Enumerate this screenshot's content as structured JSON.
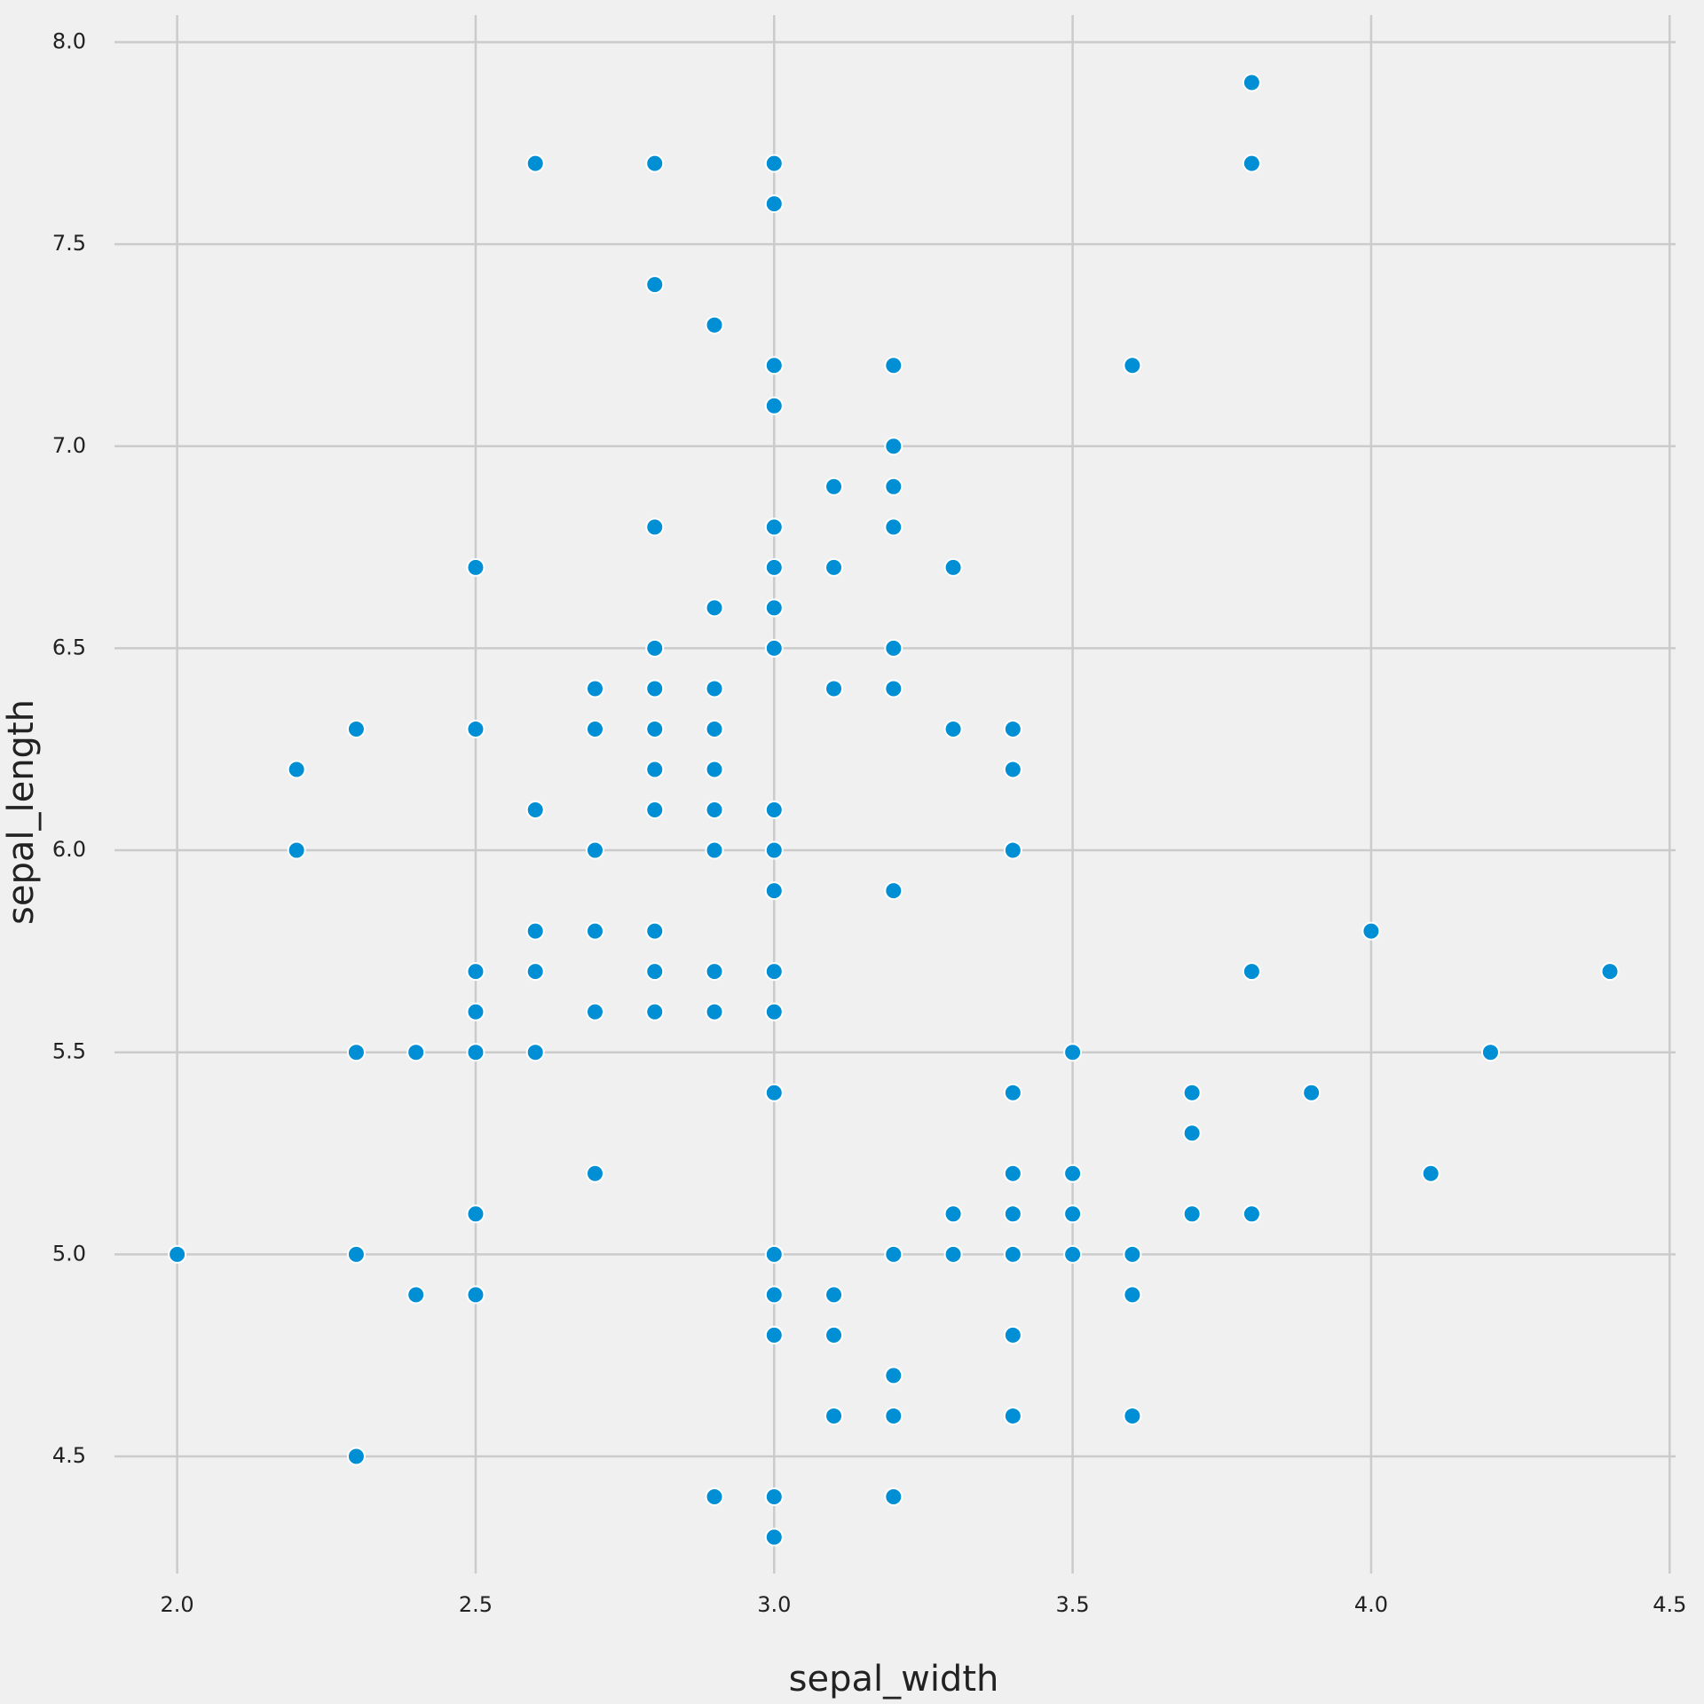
{
  "chart_data": {
    "type": "scatter",
    "x_label": "sepal_width",
    "y_label": "sepal_length",
    "color": "#008fd5",
    "grid": true,
    "xlim": [
      1.895,
      4.51
    ],
    "ylim": [
      4.21,
      8.067
    ],
    "xticks": [
      {
        "value": 2,
        "label": "2.0"
      },
      {
        "value": 2.5,
        "label": "2.5"
      },
      {
        "value": 3,
        "label": "3.0"
      },
      {
        "value": 3.5,
        "label": "3.5"
      },
      {
        "value": 4,
        "label": "4.0"
      },
      {
        "value": 4.5,
        "label": "4.5"
      }
    ],
    "yticks": [
      {
        "value": 4.5,
        "label": "4.5"
      },
      {
        "value": 5,
        "label": "5.0"
      },
      {
        "value": 5.5,
        "label": "5.5"
      },
      {
        "value": 6,
        "label": "6.0"
      },
      {
        "value": 6.5,
        "label": "6.5"
      },
      {
        "value": 7,
        "label": "7.0"
      },
      {
        "value": 7.5,
        "label": "7.5"
      },
      {
        "value": 8,
        "label": "8.0"
      }
    ],
    "x": [
      3.8,
      2.6,
      2.8,
      3.0,
      3.8,
      3.0,
      2.8,
      2.9,
      3.0,
      3.2,
      3.6,
      3.0,
      3.2,
      3.1,
      3.2,
      2.8,
      3.0,
      3.2,
      2.5,
      3.0,
      3.1,
      3.3,
      2.9,
      3.0,
      2.8,
      3.0,
      3.2,
      2.7,
      2.8,
      2.9,
      3.1,
      3.2,
      2.3,
      2.5,
      2.7,
      2.8,
      2.9,
      3.3,
      3.4,
      2.2,
      2.8,
      2.9,
      3.4,
      2.6,
      2.8,
      2.9,
      3.0,
      2.2,
      2.7,
      2.9,
      3.0,
      3.4,
      3.0,
      3.2,
      2.6,
      2.7,
      2.8,
      4.0,
      2.5,
      2.6,
      2.8,
      2.9,
      3.0,
      3.8,
      4.4,
      2.5,
      2.7,
      2.8,
      2.9,
      3.0,
      2.3,
      2.4,
      2.5,
      2.6,
      3.5,
      4.2,
      3.0,
      3.4,
      3.7,
      3.9,
      3.7,
      2.7,
      3.4,
      3.5,
      4.1,
      2.5,
      3.3,
      3.4,
      3.5,
      3.7,
      3.8,
      2.0,
      2.3,
      3.0,
      3.2,
      3.3,
      3.4,
      3.5,
      3.6,
      2.4,
      2.5,
      3.0,
      3.1,
      3.6,
      3.0,
      3.1,
      3.4,
      3.2,
      3.1,
      3.2,
      3.4,
      3.6,
      2.3,
      2.9,
      3.0,
      3.2,
      3.0
    ],
    "values": [
      7.9,
      7.7,
      7.7,
      7.7,
      7.7,
      7.6,
      7.4,
      7.3,
      7.2,
      7.2,
      7.2,
      7.1,
      7.0,
      6.9,
      6.9,
      6.8,
      6.8,
      6.8,
      6.7,
      6.7,
      6.7,
      6.7,
      6.6,
      6.6,
      6.5,
      6.5,
      6.5,
      6.4,
      6.4,
      6.4,
      6.4,
      6.4,
      6.3,
      6.3,
      6.3,
      6.3,
      6.3,
      6.3,
      6.3,
      6.2,
      6.2,
      6.2,
      6.2,
      6.1,
      6.1,
      6.1,
      6.1,
      6.0,
      6.0,
      6.0,
      6.0,
      6.0,
      5.9,
      5.9,
      5.8,
      5.8,
      5.8,
      5.8,
      5.7,
      5.7,
      5.7,
      5.7,
      5.7,
      5.7,
      5.7,
      5.6,
      5.6,
      5.6,
      5.6,
      5.6,
      5.5,
      5.5,
      5.5,
      5.5,
      5.5,
      5.5,
      5.4,
      5.4,
      5.4,
      5.4,
      5.3,
      5.2,
      5.2,
      5.2,
      5.2,
      5.1,
      5.1,
      5.1,
      5.1,
      5.1,
      5.1,
      5.0,
      5.0,
      5.0,
      5.0,
      5.0,
      5.0,
      5.0,
      5.0,
      4.9,
      4.9,
      4.9,
      4.9,
      4.9,
      4.8,
      4.8,
      4.8,
      4.7,
      4.6,
      4.6,
      4.6,
      4.6,
      4.5,
      4.4,
      4.4,
      4.4,
      4.3
    ]
  }
}
